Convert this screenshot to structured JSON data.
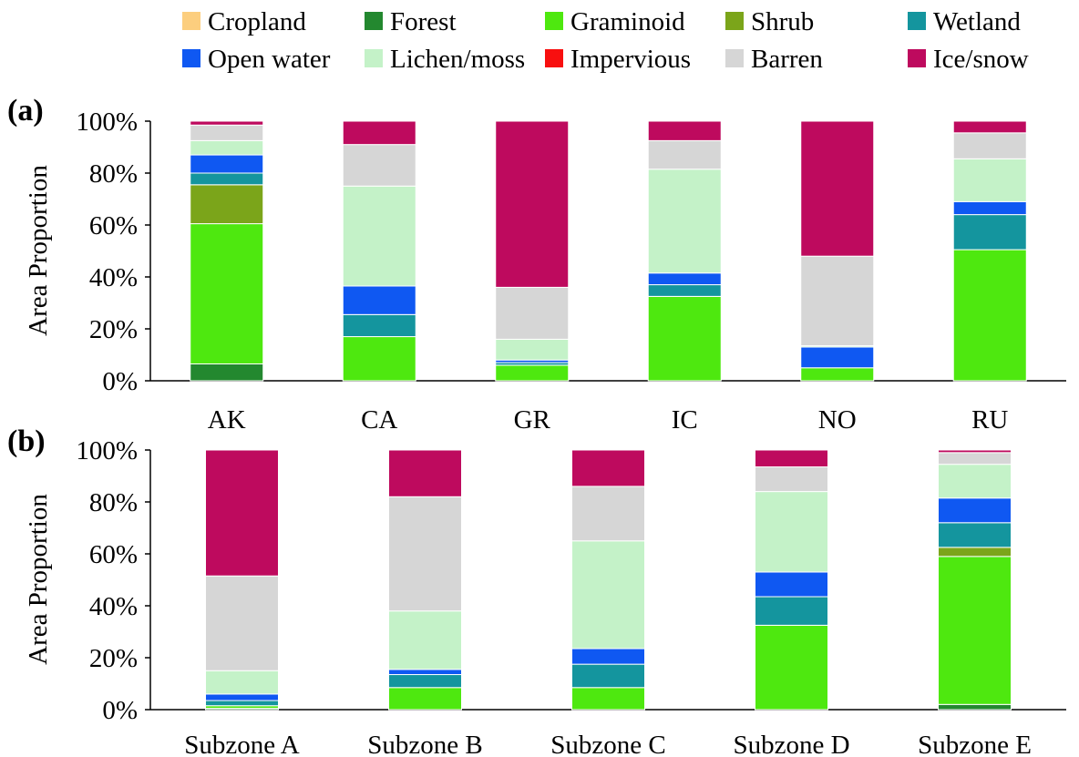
{
  "legend": {
    "items": [
      {
        "name": "Cropland",
        "color": "#FCCE7E"
      },
      {
        "name": "Forest",
        "color": "#23882F"
      },
      {
        "name": "Graminoid",
        "color": "#4EE80F"
      },
      {
        "name": "Shrub",
        "color": "#7BA51A"
      },
      {
        "name": "Wetland",
        "color": "#14959E"
      },
      {
        "name": "Open water",
        "color": "#0F58F2"
      },
      {
        "name": "Lichen/moss",
        "color": "#C4F2C8"
      },
      {
        "name": "Impervious",
        "color": "#F80F0F"
      },
      {
        "name": "Barren",
        "color": "#D6D6D6"
      },
      {
        "name": "Ice/snow",
        "color": "#BE0A5E"
      }
    ]
  },
  "chart_data": [
    {
      "type": "bar",
      "stacked": true,
      "panel_label": "(a)",
      "ylabel": "Area Proportion",
      "ylim": [
        0,
        100
      ],
      "yticks": [
        "0%",
        "20%",
        "40%",
        "60%",
        "80%",
        "100%"
      ],
      "categories": [
        "AK",
        "CA",
        "GR",
        "IC",
        "NO",
        "RU"
      ],
      "series": [
        {
          "name": "Cropland",
          "values": [
            0,
            0,
            0,
            0,
            0,
            0
          ]
        },
        {
          "name": "Forest",
          "values": [
            6.5,
            0,
            0,
            0,
            0,
            0
          ]
        },
        {
          "name": "Graminoid",
          "values": [
            54,
            17,
            6,
            32.5,
            5,
            50.5
          ]
        },
        {
          "name": "Shrub",
          "values": [
            15,
            0,
            0,
            0,
            0,
            0
          ]
        },
        {
          "name": "Wetland",
          "values": [
            4.5,
            8.5,
            1,
            4.5,
            0,
            13.5
          ]
        },
        {
          "name": "Open water",
          "values": [
            7,
            11,
            1,
            4.5,
            8,
            5
          ]
        },
        {
          "name": "Lichen/moss",
          "values": [
            5.5,
            38.5,
            8,
            40,
            0.5,
            16.5
          ]
        },
        {
          "name": "Impervious",
          "values": [
            0,
            0,
            0,
            0,
            0,
            0
          ]
        },
        {
          "name": "Barren",
          "values": [
            6,
            16,
            20,
            11,
            34.5,
            10
          ]
        },
        {
          "name": "Ice/snow",
          "values": [
            1.5,
            9,
            64,
            7.5,
            52,
            4.5
          ]
        }
      ]
    },
    {
      "type": "bar",
      "stacked": true,
      "panel_label": "(b)",
      "ylabel": "Area Proportion",
      "ylim": [
        0,
        100
      ],
      "yticks": [
        "0%",
        "20%",
        "40%",
        "60%",
        "80%",
        "100%"
      ],
      "categories": [
        "Subzone A",
        "Subzone B",
        "Subzone C",
        "Subzone D",
        "Subzone E"
      ],
      "series": [
        {
          "name": "Cropland",
          "values": [
            0,
            0,
            0,
            0,
            0
          ]
        },
        {
          "name": "Forest",
          "values": [
            0.5,
            0,
            0,
            0,
            2
          ]
        },
        {
          "name": "Graminoid",
          "values": [
            1,
            8.5,
            8.5,
            32.5,
            57
          ]
        },
        {
          "name": "Shrub",
          "values": [
            0,
            0,
            0,
            0,
            3.5
          ]
        },
        {
          "name": "Wetland",
          "values": [
            2,
            5,
            9,
            11,
            9.5
          ]
        },
        {
          "name": "Open water",
          "values": [
            2.5,
            2,
            6,
            9.5,
            9.5
          ]
        },
        {
          "name": "Lichen/moss",
          "values": [
            9,
            22.5,
            41.5,
            31,
            13
          ]
        },
        {
          "name": "Impervious",
          "values": [
            0,
            0,
            0,
            0,
            0
          ]
        },
        {
          "name": "Barren",
          "values": [
            36.5,
            44,
            21,
            9.5,
            4.5
          ]
        },
        {
          "name": "Ice/snow",
          "values": [
            48.5,
            18,
            14,
            6.5,
            1
          ]
        }
      ]
    }
  ]
}
